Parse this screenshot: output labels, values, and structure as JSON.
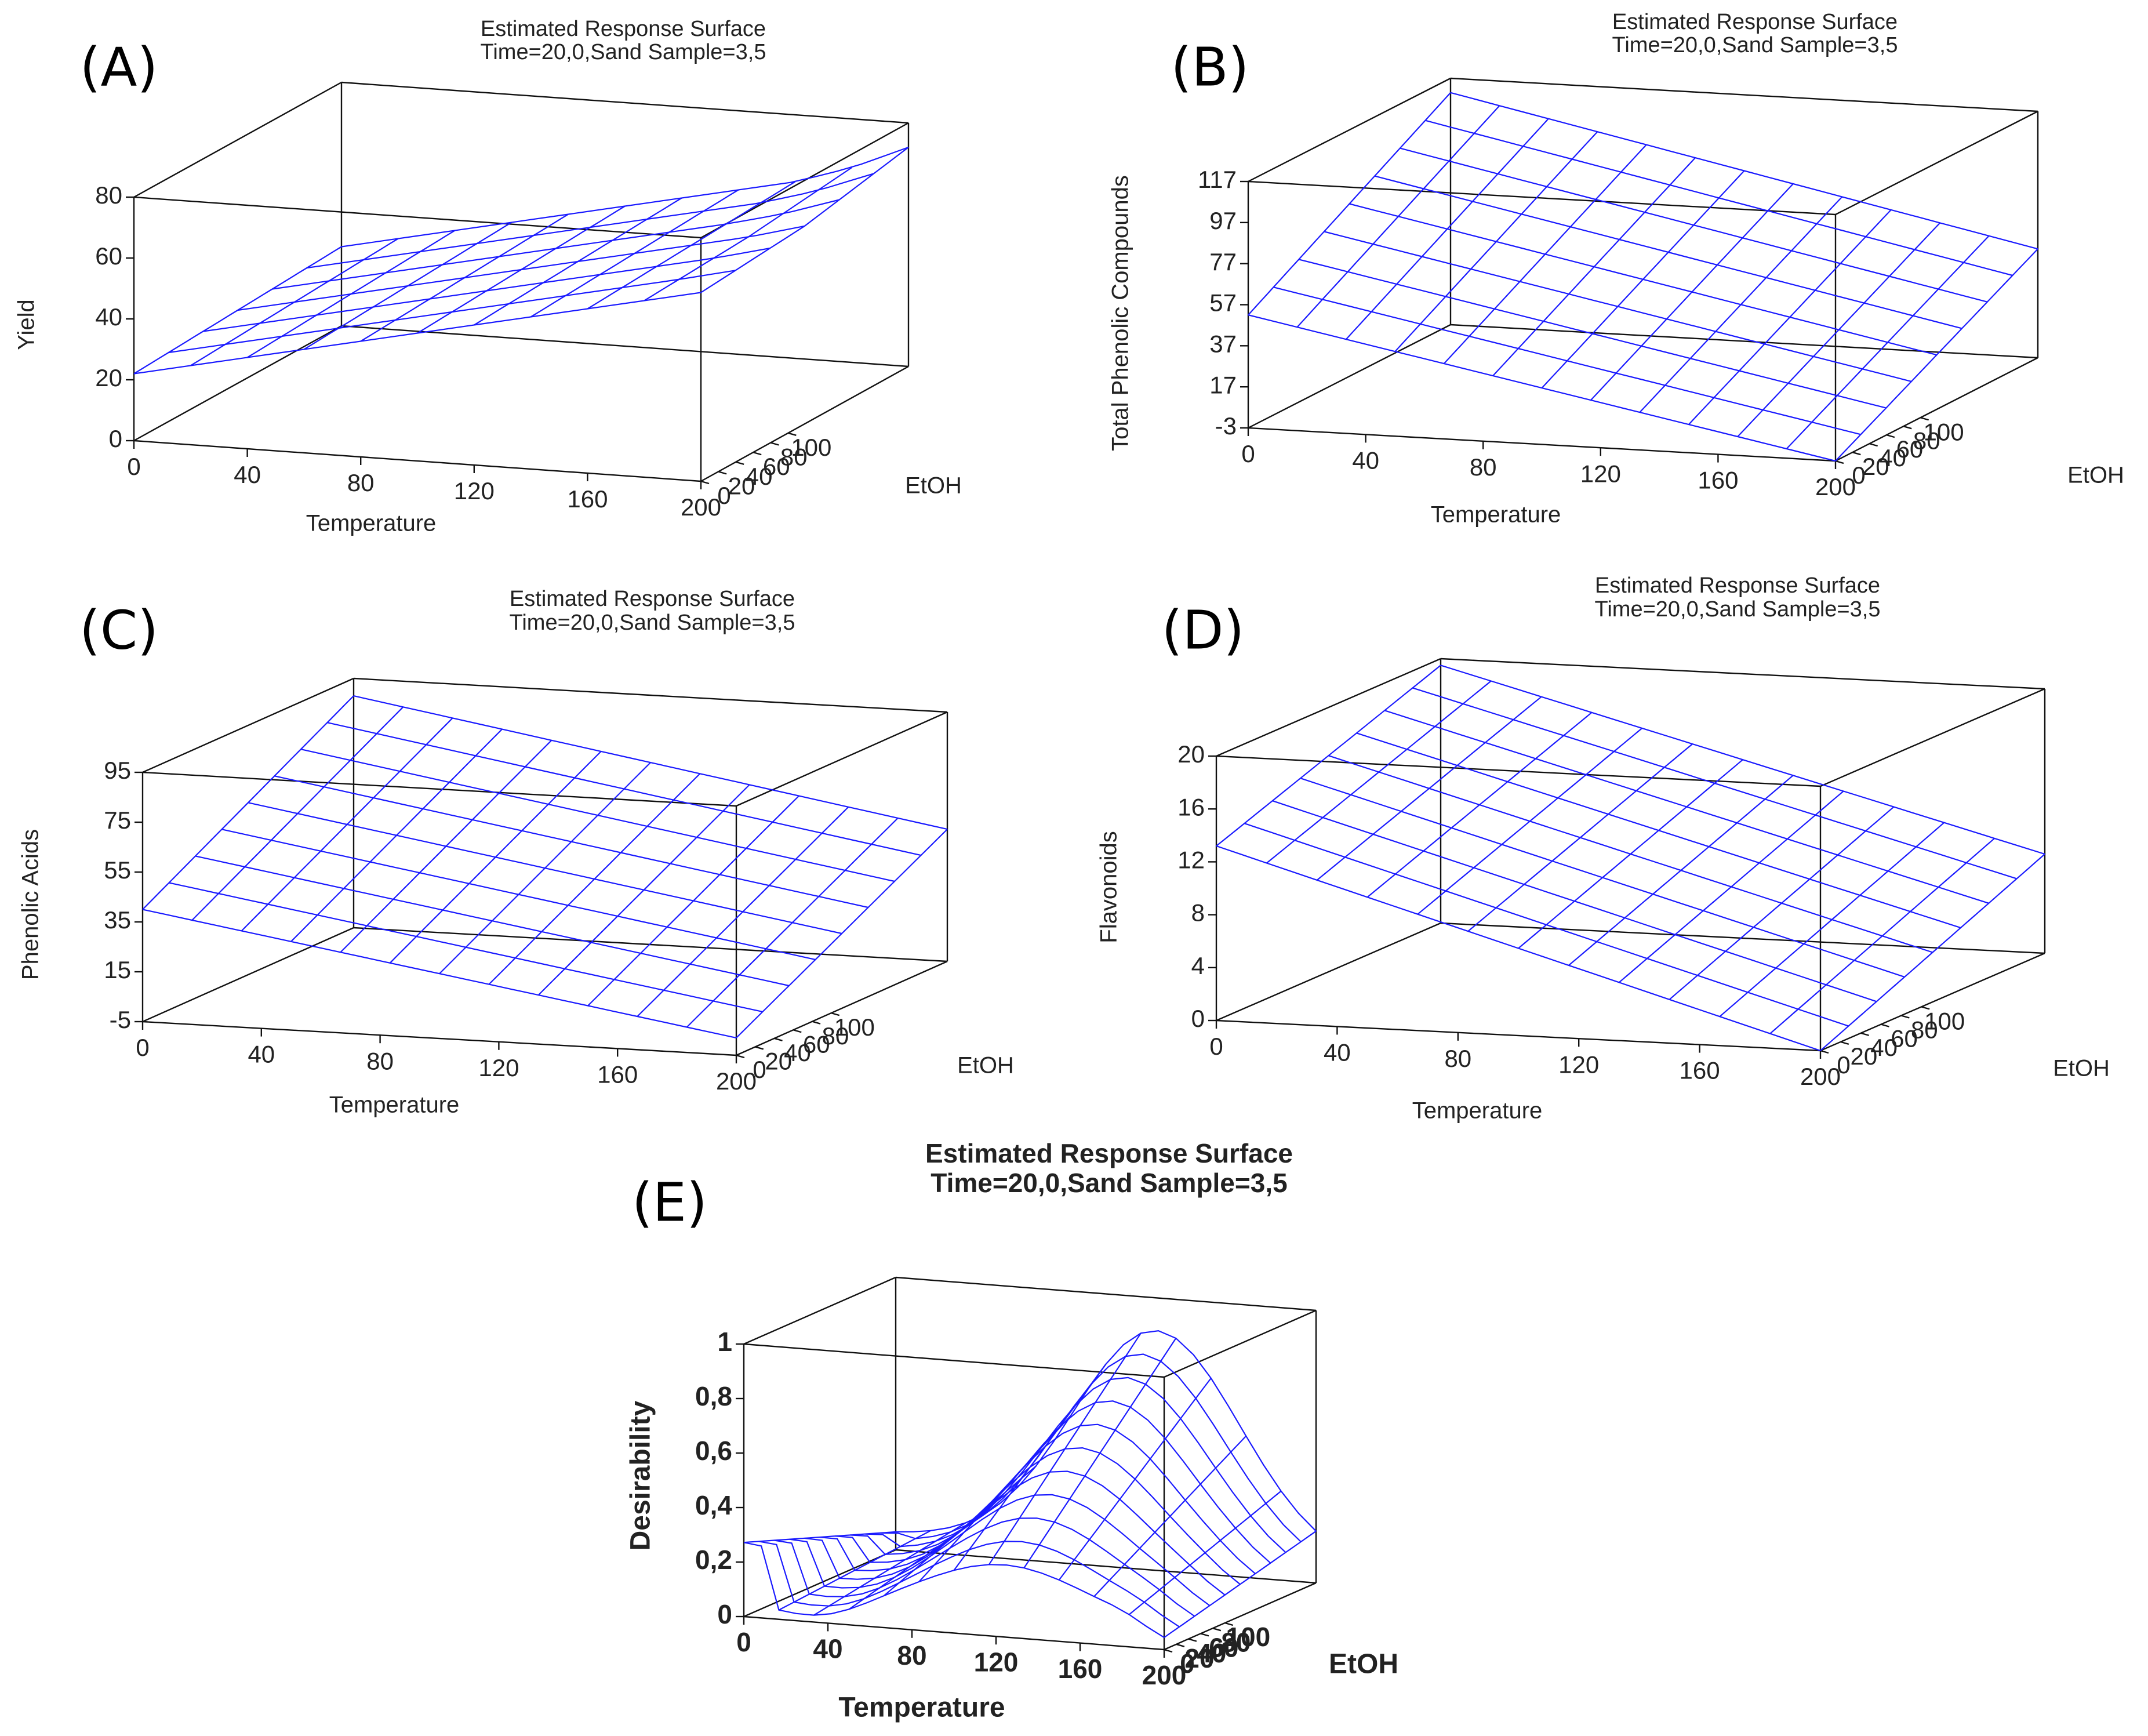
{
  "chart_data": [
    {
      "panel_label": "(A)",
      "type": "surface3d",
      "title": "Estimated Response Surface",
      "subtitle": "Time=20,0,Sand Sample=3,5",
      "xlabel": "Temperature",
      "ylabel": "EtOH",
      "zlabel": "Yield",
      "xlim": [
        0,
        200
      ],
      "ylim": [
        0,
        100
      ],
      "zlim": [
        0,
        80
      ],
      "xticks": [
        "0",
        "40",
        "80",
        "120",
        "160",
        "200"
      ],
      "yticks": [
        "0",
        "20",
        "40",
        "60",
        "80",
        "100"
      ],
      "zticks": [
        "0",
        "20",
        "40",
        "60",
        "80"
      ],
      "zmin": 0,
      "zmax": 80,
      "surface": {
        "x": [
          0,
          200
        ],
        "y": [
          0,
          100
        ],
        "grid": [
          [
            22,
            24,
            26
          ],
          [
            26,
            28,
            30
          ],
          [
            30,
            32,
            34
          ],
          [
            34,
            36,
            38
          ],
          [
            38,
            40,
            42
          ],
          [
            42,
            44,
            46
          ],
          [
            46,
            48,
            50
          ],
          [
            50,
            52,
            54
          ],
          [
            54,
            56,
            58
          ],
          [
            58,
            60,
            64
          ],
          [
            62,
            65,
            72
          ]
        ]
      },
      "color": "#1a1aff"
    },
    {
      "panel_label": "(B)",
      "type": "surface3d",
      "title": "Estimated Response Surface",
      "subtitle": "Time=20,0,Sand Sample=3,5",
      "xlabel": "Temperature",
      "ylabel": "EtOH",
      "zlabel": "Total Phenolic Compounds",
      "xlim": [
        0,
        200
      ],
      "ylim": [
        0,
        100
      ],
      "zlim": [
        -3,
        117
      ],
      "xticks": [
        "0",
        "40",
        "80",
        "120",
        "160",
        "200"
      ],
      "yticks": [
        "0",
        "20",
        "40",
        "60",
        "80",
        "100"
      ],
      "zticks": [
        "-3",
        "17",
        "37",
        "57",
        "77",
        "97",
        "117"
      ],
      "zmin": -3,
      "zmax": 117,
      "surface": {
        "x": [
          0,
          200
        ],
        "y": [
          0,
          100
        ],
        "corners": [
          52,
          110,
          -3,
          50
        ]
      },
      "color": "#1a1aff"
    },
    {
      "panel_label": "(C)",
      "type": "surface3d",
      "title": "Estimated Response Surface",
      "subtitle": "Time=20,0,Sand Sample=3,5",
      "xlabel": "Temperature",
      "ylabel": "EtOH",
      "zlabel": "Phenolic Acids",
      "xlim": [
        0,
        200
      ],
      "ylim": [
        0,
        100
      ],
      "zlim": [
        -5,
        95
      ],
      "xticks": [
        "0",
        "40",
        "80",
        "120",
        "160",
        "200"
      ],
      "yticks": [
        "0",
        "20",
        "40",
        "60",
        "80",
        "100"
      ],
      "zticks": [
        "-5",
        "15",
        "35",
        "55",
        "75",
        "95"
      ],
      "zmin": -5,
      "zmax": 95,
      "surface": {
        "x": [
          0,
          200
        ],
        "y": [
          0,
          100
        ],
        "corners": [
          40,
          88,
          2,
          48
        ]
      },
      "color": "#1a1aff"
    },
    {
      "panel_label": "(D)",
      "type": "surface3d",
      "title": "Estimated Response Surface",
      "subtitle": "Time=20,0,Sand Sample=3,5",
      "xlabel": "Temperature",
      "ylabel": "EtOH",
      "zlabel": "Flavonoids",
      "xlim": [
        0,
        200
      ],
      "ylim": [
        0,
        100
      ],
      "zlim": [
        0,
        20
      ],
      "xticks": [
        "0",
        "40",
        "80",
        "120",
        "160",
        "200"
      ],
      "yticks": [
        "0",
        "20",
        "40",
        "60",
        "80",
        "100"
      ],
      "zticks": [
        "0",
        "4",
        "8",
        "12",
        "16",
        "20"
      ],
      "zmin": 0,
      "zmax": 20,
      "surface": {
        "x": [
          0,
          200
        ],
        "y": [
          0,
          100
        ],
        "corners": [
          13.2,
          19.5,
          0,
          7.5
        ]
      },
      "color": "#1a1aff"
    },
    {
      "panel_label": "(E)",
      "type": "surface3d",
      "title": "Estimated Response Surface",
      "subtitle": "Time=20,0,Sand Sample=3,5",
      "xlabel": "Temperature",
      "ylabel": "EtOH",
      "zlabel": "Desirability",
      "xlim": [
        0,
        200
      ],
      "ylim": [
        0,
        100
      ],
      "zlim": [
        0,
        1
      ],
      "xticks": [
        "0",
        "40",
        "80",
        "120",
        "160",
        "200"
      ],
      "yticks": [
        "0",
        "20",
        "40",
        "60",
        "80",
        "100"
      ],
      "zticks": [
        "0",
        "0,2",
        "0,4",
        "0,6",
        "0,8",
        "1"
      ],
      "zmin": 0,
      "zmax": 1,
      "surface": {
        "x": [
          0,
          200
        ],
        "y": [
          0,
          100
        ],
        "model": "desirability"
      },
      "color": "#1a1aff"
    }
  ]
}
